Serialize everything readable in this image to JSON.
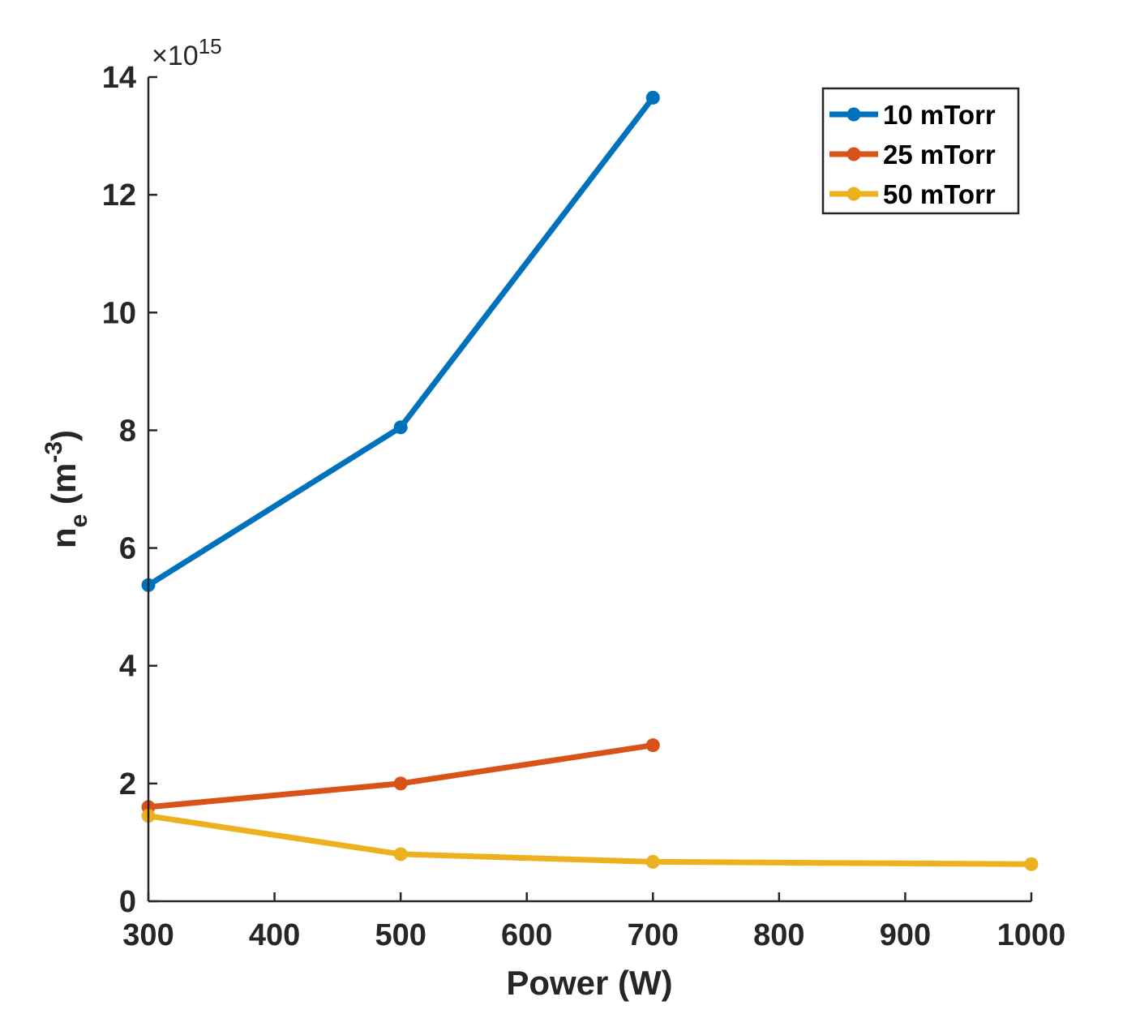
{
  "chart_data": {
    "type": "line",
    "title": "",
    "xlabel": "Power (W)",
    "ylabel": {
      "main": "n",
      "sub": "e",
      "open": " (m",
      "sup": "-3",
      "close": ")"
    },
    "y_exponent": {
      "times": "×10",
      "power": "15"
    },
    "xlim": [
      300,
      1000
    ],
    "ylim": [
      0,
      14
    ],
    "x_ticks": [
      300,
      400,
      500,
      600,
      700,
      800,
      900,
      1000
    ],
    "y_ticks": [
      0,
      2,
      4,
      6,
      8,
      10,
      12,
      14
    ],
    "grid": false,
    "legend_position": "top-right",
    "series": [
      {
        "name": "10 mTorr",
        "color": "#0072BD",
        "x": [
          300,
          500,
          700
        ],
        "y": [
          5.37,
          8.05,
          13.65
        ]
      },
      {
        "name": "25 mTorr",
        "color": "#D95319",
        "x": [
          300,
          500,
          700
        ],
        "y": [
          1.6,
          2.0,
          2.65
        ]
      },
      {
        "name": "50 mTorr",
        "color": "#EDB120",
        "x": [
          300,
          500,
          700,
          1000
        ],
        "y": [
          1.45,
          0.8,
          0.67,
          0.63
        ]
      }
    ]
  }
}
